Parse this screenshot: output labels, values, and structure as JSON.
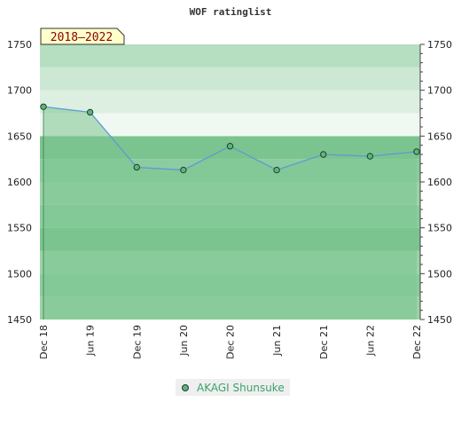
{
  "chart_data": {
    "type": "area",
    "title": "WOF ratinglist",
    "badge": "2018–2022",
    "categories": [
      "Dec 18",
      "Jun 19",
      "Dec 19",
      "Jun 20",
      "Dec 20",
      "Jun 21",
      "Dec 21",
      "Jun 22",
      "Dec 22"
    ],
    "series": [
      {
        "name": "AKAGI Shunsuke",
        "values": [
          1682,
          1676,
          1616,
          1613,
          1639,
          1613,
          1630,
          1628,
          1633
        ]
      }
    ],
    "ylim": [
      1450,
      1750
    ],
    "yticks": [
      1450,
      1500,
      1550,
      1600,
      1650,
      1700,
      1750
    ],
    "y_axes": "left and right",
    "colors": {
      "line": "#5b9bd5",
      "area": "#7cc48f",
      "marker": "#5fb47e",
      "badge_bg": "#ffffcc",
      "badge_text": "#8b0000"
    }
  },
  "legend": {
    "label": "AKAGI Shunsuke"
  }
}
